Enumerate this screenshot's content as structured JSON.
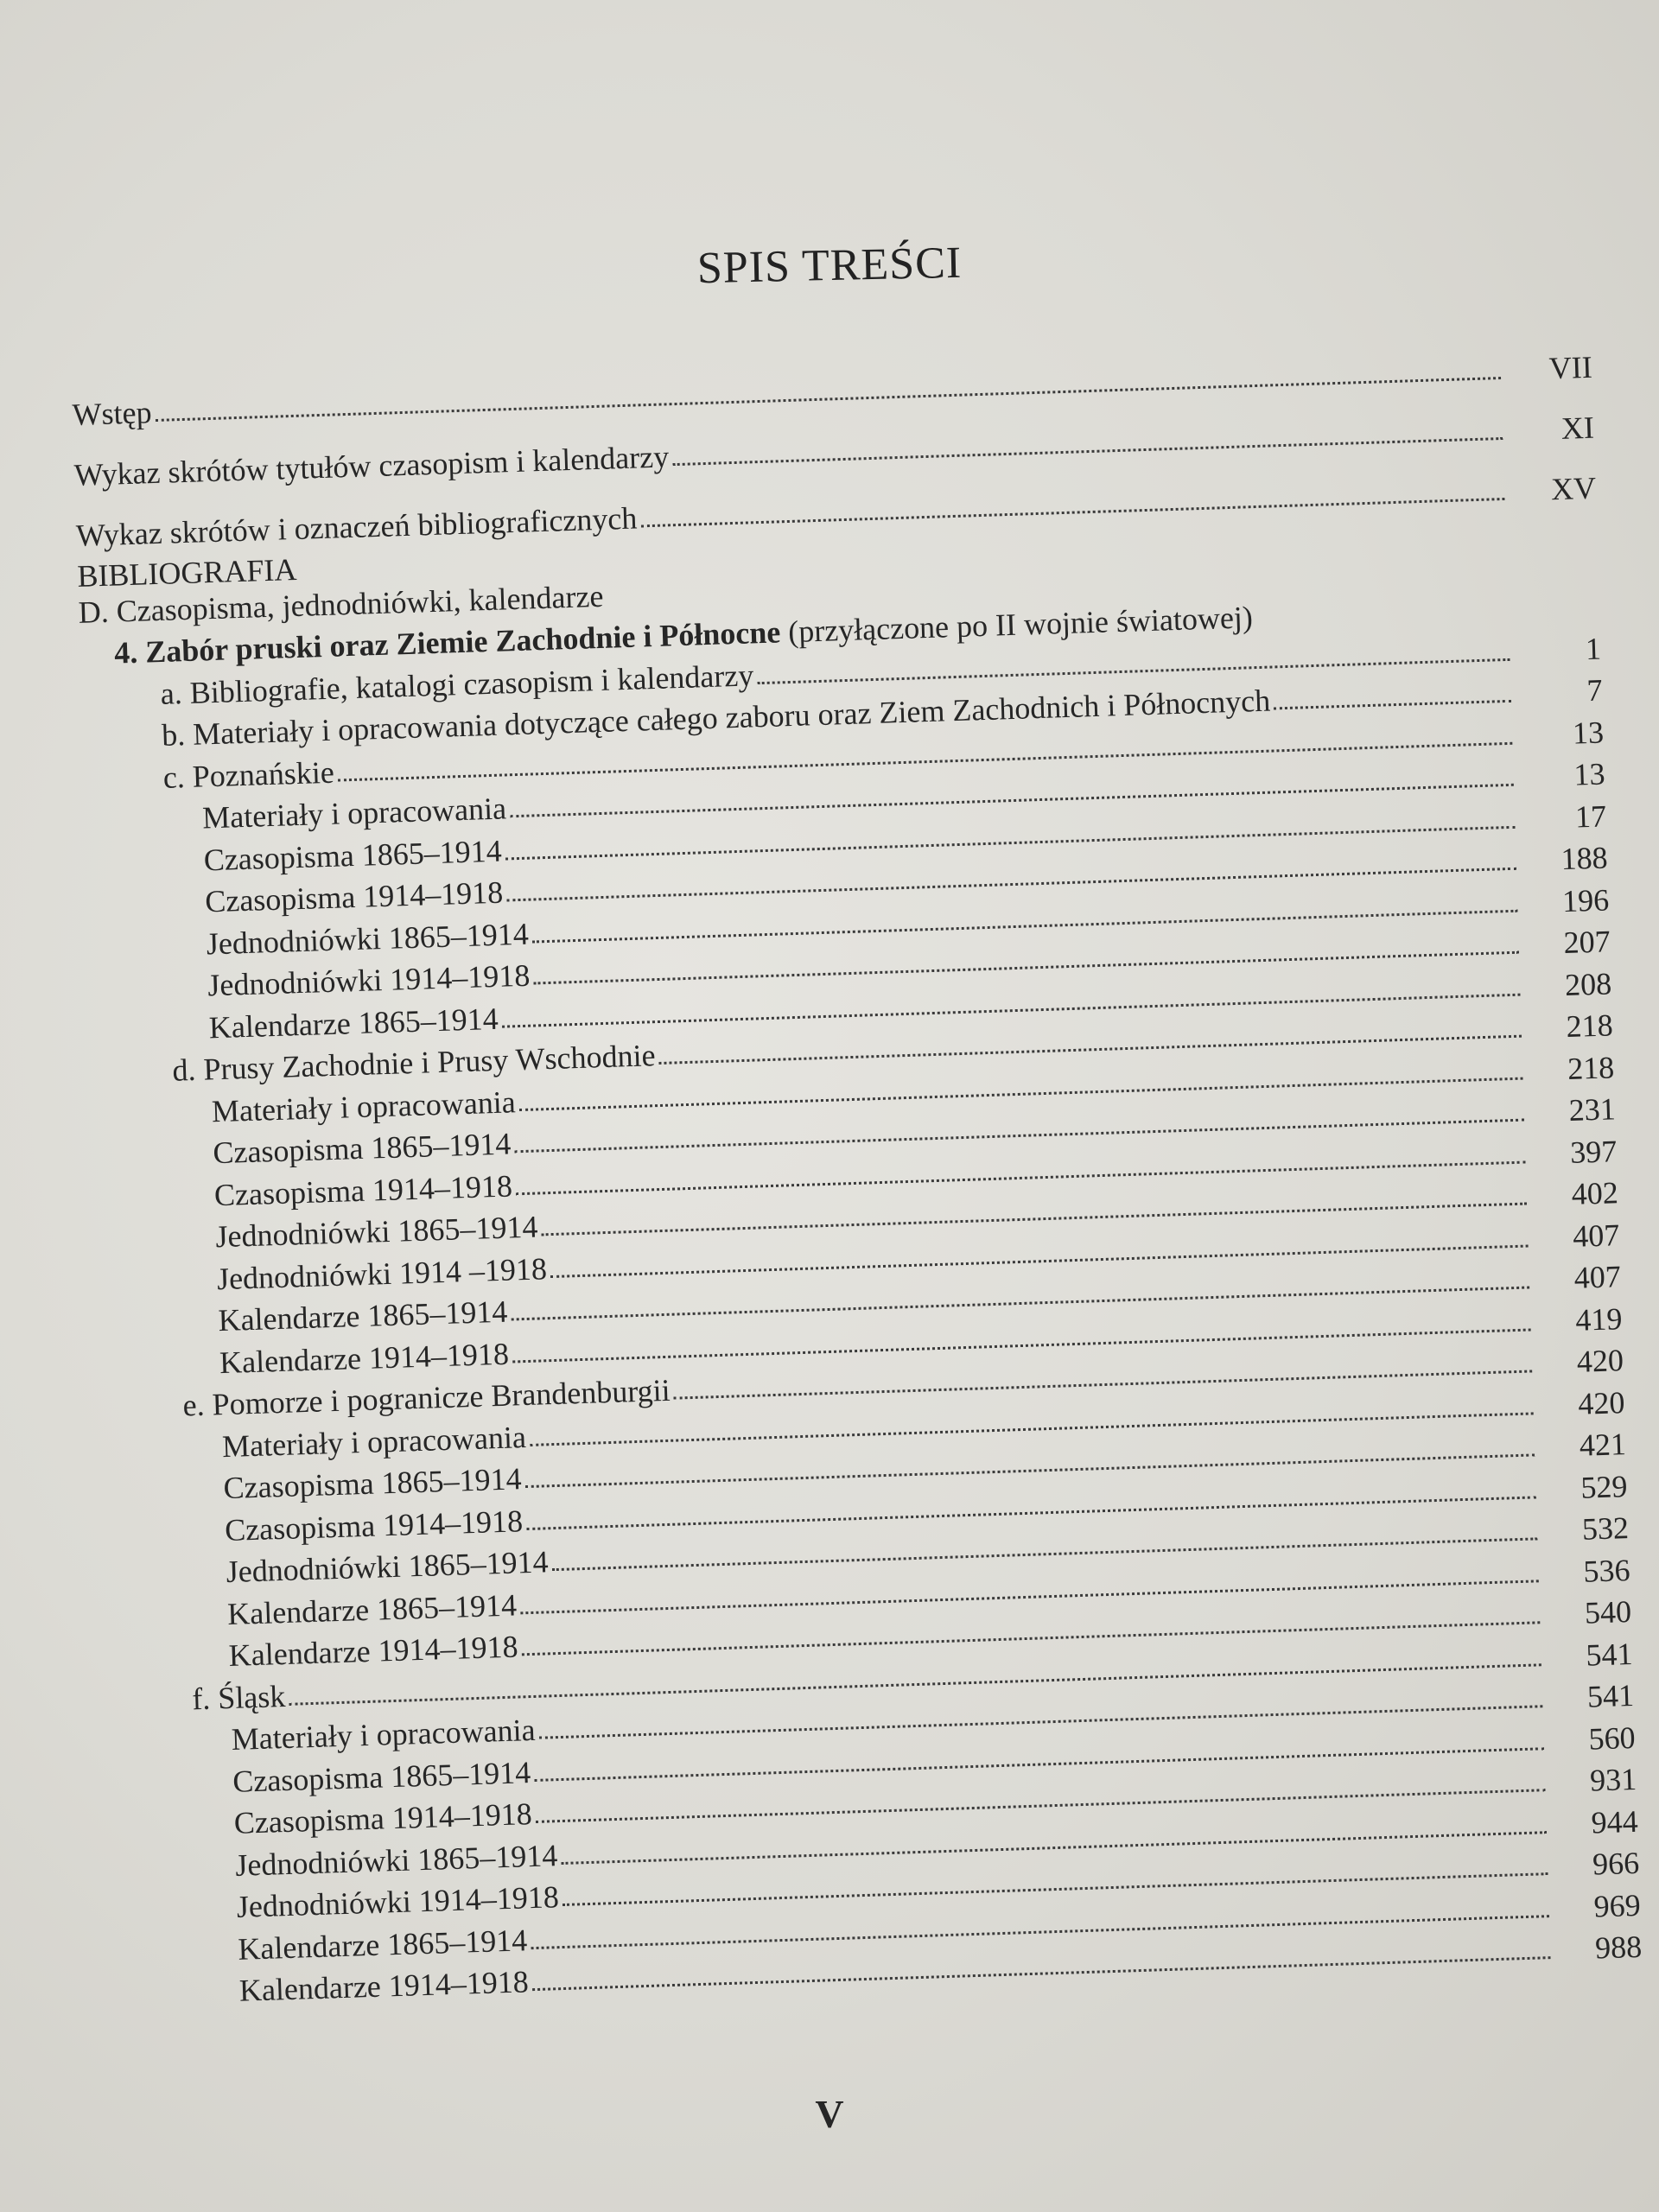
{
  "title": "SPIS TREŚCI",
  "front_matter": [
    {
      "label": "Wstęp",
      "page": "VII"
    },
    {
      "label": "Wykaz skrótów tytułów czasopism i kalendarzy",
      "page": "XI"
    },
    {
      "label": "Wykaz skrótów i oznaczeń bibliograficznych",
      "page": "XV"
    }
  ],
  "section_heading": "BIBLIOGRAFIA",
  "part_heading": "D. Czasopisma, jednodniówki, kalendarze",
  "chapter_heading": {
    "bold": "4. Zabór pruski oraz Ziemie Zachodnie i Północne",
    "normal": " (przyłączone po II wojnie światowej)"
  },
  "entries": [
    {
      "level": 2,
      "label": "a. Bibliografie, katalogi czasopism i kalendarzy",
      "page": "1"
    },
    {
      "level": 2,
      "label": "b. Materiały i opracowania dotyczące całego zaboru oraz Ziem Zachodnich i Północnych",
      "page": "7"
    },
    {
      "level": 2,
      "label": "c. Poznańskie",
      "page": "13"
    },
    {
      "level": 3,
      "label": "Materiały i opracowania",
      "page": "13"
    },
    {
      "level": 3,
      "label": "Czasopisma 1865–1914",
      "page": "17"
    },
    {
      "level": 3,
      "label": "Czasopisma 1914–1918",
      "page": "188"
    },
    {
      "level": 3,
      "label": "Jednodniówki 1865–1914",
      "page": "196"
    },
    {
      "level": 3,
      "label": "Jednodniówki 1914–1918",
      "page": "207"
    },
    {
      "level": 3,
      "label": "Kalendarze 1865–1914",
      "page": "208"
    },
    {
      "level": 2,
      "label": "d. Prusy Zachodnie i Prusy Wschodnie",
      "page": "218"
    },
    {
      "level": 3,
      "label": "Materiały i opracowania",
      "page": "218"
    },
    {
      "level": 3,
      "label": "Czasopisma 1865–1914",
      "page": "231"
    },
    {
      "level": 3,
      "label": "Czasopisma 1914–1918",
      "page": "397"
    },
    {
      "level": 3,
      "label": "Jednodniówki 1865–1914",
      "page": "402"
    },
    {
      "level": 3,
      "label": "Jednodniówki 1914 –1918",
      "page": "407"
    },
    {
      "level": 3,
      "label": "Kalendarze 1865–1914",
      "page": "407"
    },
    {
      "level": 3,
      "label": "Kalendarze 1914–1918",
      "page": "419"
    },
    {
      "level": 2,
      "label": "e. Pomorze i pogranicze Brandenburgii",
      "page": "420"
    },
    {
      "level": 3,
      "label": "Materiały i opracowania",
      "page": "420"
    },
    {
      "level": 3,
      "label": "Czasopisma 1865–1914",
      "page": "421"
    },
    {
      "level": 3,
      "label": "Czasopisma 1914–1918",
      "page": "529"
    },
    {
      "level": 3,
      "label": "Jednodniówki 1865–1914",
      "page": "532"
    },
    {
      "level": 3,
      "label": "Kalendarze 1865–1914",
      "page": "536"
    },
    {
      "level": 3,
      "label": "Kalendarze 1914–1918",
      "page": "540"
    },
    {
      "level": 2,
      "label": "f. Śląsk",
      "page": "541"
    },
    {
      "level": 3,
      "label": "Materiały i opracowania",
      "page": "541"
    },
    {
      "level": 3,
      "label": "Czasopisma 1865–1914",
      "page": "560"
    },
    {
      "level": 3,
      "label": "Czasopisma 1914–1918",
      "page": "931"
    },
    {
      "level": 3,
      "label": "Jednodniówki 1865–1914",
      "page": "944"
    },
    {
      "level": 3,
      "label": "Jednodniówki 1914–1918",
      "page": "966"
    },
    {
      "level": 3,
      "label": "Kalendarze 1865–1914",
      "page": "969"
    },
    {
      "level": 3,
      "label": "Kalendarze 1914–1918",
      "page": "988"
    }
  ],
  "folio": "V"
}
